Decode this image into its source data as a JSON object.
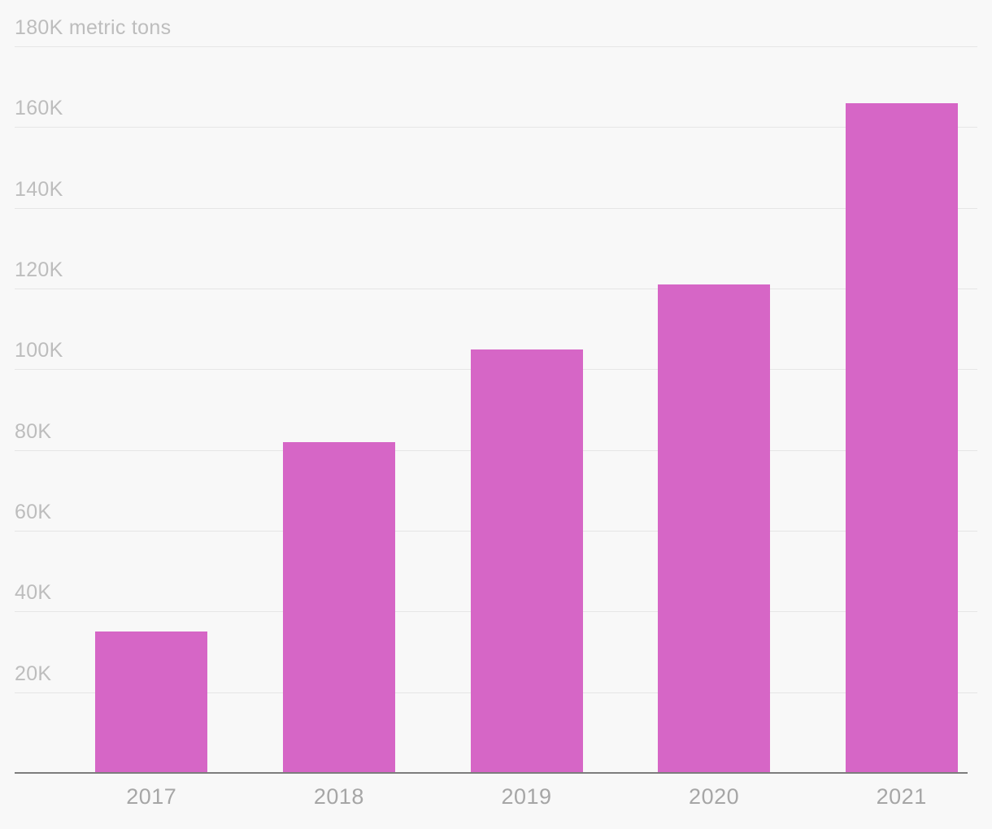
{
  "chart_data": {
    "type": "bar",
    "title": "",
    "unit_label": "metric tons",
    "categories": [
      "2017",
      "2018",
      "2019",
      "2020",
      "2021"
    ],
    "values": [
      35000,
      82000,
      105000,
      121000,
      166000
    ],
    "xlabel": "",
    "ylabel": "metric tons",
    "ylim": [
      0,
      180000
    ],
    "ytick_interval": 20000,
    "yticks": [
      20000,
      40000,
      60000,
      80000,
      100000,
      120000,
      140000,
      160000,
      180000
    ],
    "ytick_labels": [
      "20K",
      "40K",
      "60K",
      "80K",
      "100K",
      "120K",
      "140K",
      "160K",
      "180K metric tons"
    ],
    "grid": true,
    "legend": "none",
    "bar_color": "#d666c6",
    "background_color": "#f8f8f8",
    "gridline_color": "#e6e6e6",
    "axis_line_color": "#7d7d7d",
    "ytick_label_color": "#bdbdbd",
    "xtick_label_color": "#a6a6a6"
  }
}
